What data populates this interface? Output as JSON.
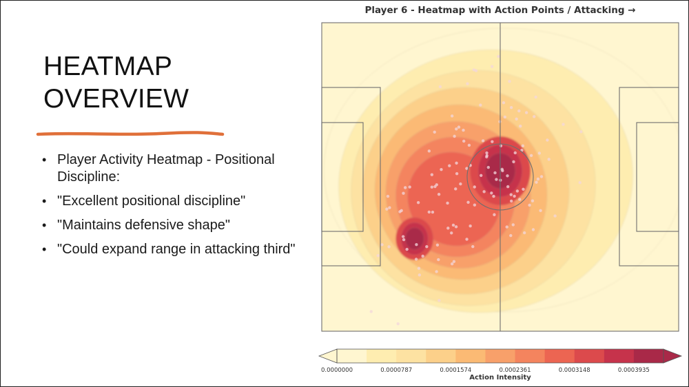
{
  "slide": {
    "title": "HEATMAP\nOVERVIEW",
    "bullets": [
      "Player Activity Heatmap - Positional Discipline:",
      "\"Excellent positional discipline\"",
      "\"Maintains defensive shape\"",
      "\"Could expand range in attacking third\""
    ],
    "accent_color": "#e0703a"
  },
  "chart_data": {
    "type": "heatmap",
    "title": "Player 6 - Heatmap with Action Points / Attacking →",
    "colorbar": {
      "label": "Action Intensity",
      "ticks": [
        "0.0000000",
        "0.0000787",
        "0.0001574",
        "0.0002361",
        "0.0003148",
        "0.0003935"
      ],
      "range": [
        0.0,
        0.0004329
      ],
      "levels": 11,
      "colors": [
        "#fff6d0",
        "#feedb0",
        "#fde2a2",
        "#fcd08a",
        "#fbba74",
        "#f8a06a",
        "#f4845e",
        "#ec6552",
        "#dc4a4c",
        "#c6334b",
        "#a92948"
      ]
    },
    "hotspots": [
      {
        "x": 0.5,
        "y": 0.48,
        "intensity": 0.0004329
      },
      {
        "x": 0.26,
        "y": 0.7,
        "intensity": 0.0003935
      }
    ],
    "pitch": {
      "line_color": "#6e6e6e",
      "background": "#fff6d0"
    }
  }
}
